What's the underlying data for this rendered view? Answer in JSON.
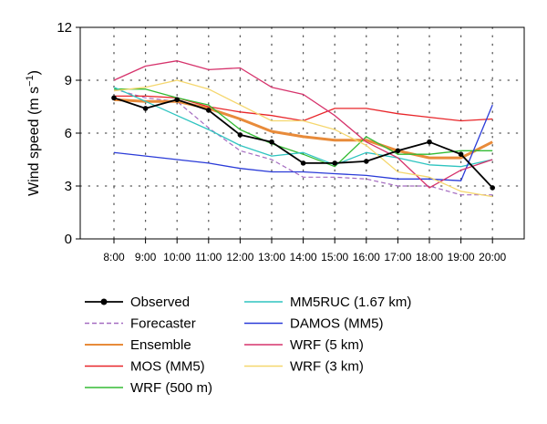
{
  "chart_data": {
    "type": "line",
    "ylabel_main": "Wind speed (m s",
    "ylabel_exp": "−1",
    "ylabel_close": ")",
    "ylim": [
      0,
      12
    ],
    "yticks": [
      "0",
      "3",
      "6",
      "9",
      "12"
    ],
    "grid": "dotted",
    "legend_position": "bottom",
    "categories": [
      "8:00",
      "9:00",
      "10:00",
      "11:00",
      "12:00",
      "13:00",
      "14:00",
      "15:00",
      "16:00",
      "17:00",
      "18:00",
      "19:00",
      "20:00"
    ],
    "series": [
      {
        "name": "Observed",
        "color": "#000000",
        "style": "solid-marker",
        "values": [
          8.0,
          7.4,
          7.9,
          7.3,
          5.9,
          5.5,
          4.3,
          4.3,
          4.4,
          5.0,
          5.5,
          4.8,
          2.9
        ]
      },
      {
        "name": "Forecaster",
        "color": "#a56cc1",
        "style": "dashed",
        "values": [
          8.5,
          8.0,
          7.8,
          6.3,
          5.0,
          4.5,
          3.5,
          3.5,
          3.4,
          3.0,
          3.0,
          2.5,
          2.5
        ]
      },
      {
        "name": "Ensemble",
        "color": "#e88b3a",
        "style": "thick",
        "values": [
          7.9,
          7.8,
          7.8,
          7.4,
          6.8,
          6.1,
          5.8,
          5.6,
          5.6,
          5.0,
          4.6,
          4.6,
          5.5
        ]
      },
      {
        "name": "MOS (MM5)",
        "color": "#e8262a",
        "style": "solid",
        "values": [
          8.1,
          8.1,
          8.0,
          7.5,
          7.2,
          7.0,
          6.7,
          7.4,
          7.4,
          7.1,
          6.9,
          6.7,
          6.8
        ]
      },
      {
        "name": "WRF (500 m)",
        "color": "#33bb33",
        "style": "solid",
        "values": [
          8.5,
          8.5,
          8.0,
          7.6,
          6.2,
          5.4,
          4.8,
          4.1,
          5.8,
          4.8,
          4.8,
          5.0,
          5.0
        ]
      },
      {
        "name": "MM5RUC (1.67 km)",
        "color": "#2ec4c0",
        "style": "solid",
        "values": [
          8.6,
          7.8,
          7.0,
          6.2,
          5.3,
          4.7,
          4.9,
          4.2,
          4.9,
          4.6,
          4.2,
          4.1,
          4.5
        ]
      },
      {
        "name": "DAMOS (MM5)",
        "color": "#2a3bd8",
        "style": "solid",
        "values": [
          4.9,
          4.7,
          4.5,
          4.3,
          4.0,
          3.8,
          3.8,
          3.7,
          3.6,
          3.4,
          3.4,
          3.3,
          7.6
        ]
      },
      {
        "name": "WRF (5 km)",
        "color": "#d6336c",
        "style": "solid",
        "values": [
          9.0,
          9.8,
          10.1,
          9.6,
          9.7,
          8.6,
          8.2,
          7.0,
          5.5,
          4.6,
          2.9,
          3.9,
          4.5
        ]
      },
      {
        "name": "WRF (3 km)",
        "color": "#f5d76e",
        "style": "solid",
        "values": [
          8.4,
          8.6,
          9.0,
          8.5,
          7.6,
          6.7,
          6.7,
          6.2,
          5.3,
          3.8,
          3.5,
          2.7,
          2.4
        ]
      }
    ]
  }
}
